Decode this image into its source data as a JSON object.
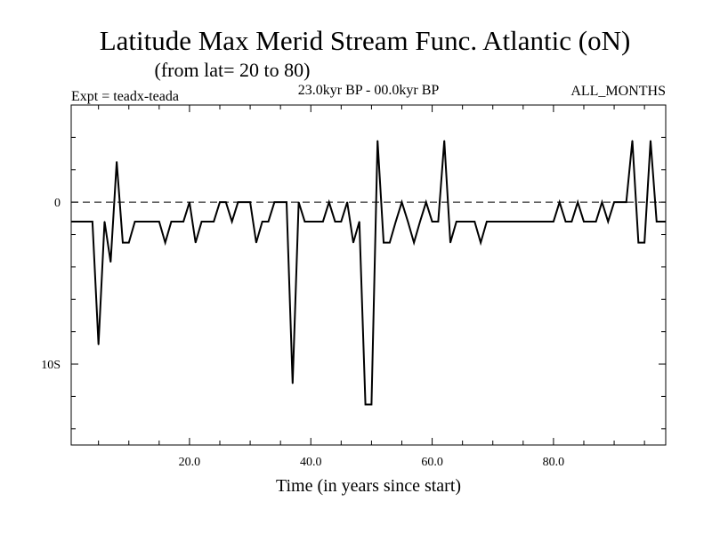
{
  "chart_data": {
    "type": "line",
    "title": "Latitude Max Merid Stream Func. Atlantic (oN)",
    "subtitle": "(from lat= 20 to 80)",
    "experiment_label": "Expt = teadx-teada",
    "period_label": "23.0kyr BP - 00.0kyr BP",
    "months_label": "ALL_MONTHS",
    "xlabel": "Time (in years since start)",
    "ylabel": "",
    "xlim": [
      0.5,
      98.5
    ],
    "ylim": [
      -15,
      6
    ],
    "x_ticks": [
      20,
      40,
      60,
      80
    ],
    "x_tick_labels": [
      "20.0",
      "40.0",
      "60.0",
      "80.0"
    ],
    "y_ticks": [
      0,
      -10
    ],
    "y_tick_labels": [
      "0",
      "10S"
    ],
    "reference_line": 0,
    "grid": false,
    "x": [
      1,
      2,
      3,
      4,
      5,
      6,
      7,
      8,
      9,
      10,
      11,
      12,
      13,
      14,
      15,
      16,
      17,
      18,
      19,
      20,
      21,
      22,
      23,
      24,
      25,
      26,
      27,
      28,
      29,
      30,
      31,
      32,
      33,
      34,
      35,
      36,
      37,
      38,
      39,
      40,
      41,
      42,
      43,
      44,
      45,
      46,
      47,
      48,
      49,
      50,
      51,
      52,
      53,
      54,
      55,
      56,
      57,
      58,
      59,
      60,
      61,
      62,
      63,
      64,
      65,
      66,
      67,
      68,
      69,
      70,
      71,
      72,
      73,
      74,
      75,
      76,
      77,
      78,
      79,
      80,
      81,
      82,
      83,
      84,
      85,
      86,
      87,
      88,
      89,
      90,
      91,
      92,
      93,
      94,
      95,
      96,
      97,
      98
    ],
    "series": [
      {
        "name": "teadx-teada",
        "values": [
          -1.2,
          -1.2,
          -1.2,
          -1.2,
          -8.8,
          -1.2,
          -3.7,
          2.5,
          -2.5,
          -2.5,
          -1.2,
          -1.2,
          -1.2,
          -1.2,
          -1.2,
          -2.5,
          -1.2,
          -1.2,
          -1.2,
          0,
          -2.5,
          -1.2,
          -1.2,
          -1.2,
          0,
          0,
          -1.2,
          0,
          0,
          0,
          -2.5,
          -1.2,
          -1.2,
          0,
          0,
          0,
          -11.2,
          0,
          -1.2,
          -1.2,
          -1.2,
          -1.2,
          0,
          -1.2,
          -1.2,
          0,
          -2.5,
          -1.2,
          -12.5,
          -12.5,
          3.8,
          -2.5,
          -2.5,
          -1.2,
          0,
          -1.2,
          -2.5,
          -1.2,
          0,
          -1.2,
          -1.2,
          3.8,
          -2.5,
          -1.2,
          -1.2,
          -1.2,
          -1.2,
          -2.5,
          -1.2,
          -1.2,
          -1.2,
          -1.2,
          -1.2,
          -1.2,
          -1.2,
          -1.2,
          -1.2,
          -1.2,
          -1.2,
          -1.2,
          0,
          -1.2,
          -1.2,
          0,
          -1.2,
          -1.2,
          -1.2,
          0,
          -1.2,
          0,
          0,
          0,
          3.8,
          -2.5,
          -2.5,
          3.8,
          -1.2,
          -1.2
        ]
      }
    ]
  }
}
